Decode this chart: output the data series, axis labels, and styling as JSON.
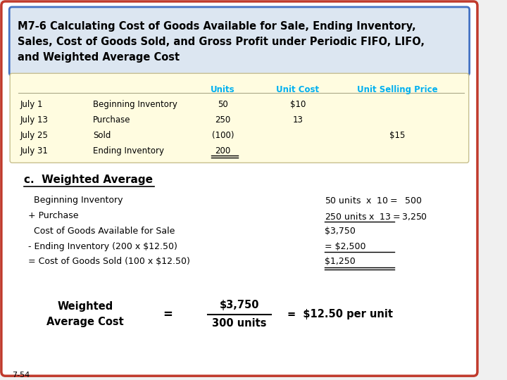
{
  "title_box_text": "M7-6 Calculating Cost of Goods Available for Sale, Ending Inventory,\nSales, Cost of Goods Sold, and Gross Profit under Periodic FIFO, LIFO,\nand Weighted Average Cost",
  "title_box_bg": "#dce6f1",
  "title_box_border": "#4472c4",
  "outer_bg": "#ffffff",
  "outer_border": "#c0392b",
  "table_bg": "#fffce0",
  "table_header_color": "#00b0f0",
  "table_font_color": "#000000",
  "table_headers": [
    "",
    "",
    "Units",
    "Unit Cost",
    "Unit Selling Price"
  ],
  "table_rows": [
    [
      "July 1",
      "Beginning Inventory",
      "50",
      "$10",
      ""
    ],
    [
      "July 13",
      "Purchase",
      "250",
      "13",
      ""
    ],
    [
      "July 25",
      "Sold",
      "(100)",
      "",
      "$15"
    ],
    [
      "July 31",
      "Ending Inventory",
      "200",
      "",
      ""
    ]
  ],
  "section_c_title": "c.  Weighted Average",
  "calc_lines": [
    [
      "  Beginning Inventory",
      "50 units  x  $10 = $  500"
    ],
    [
      "+ Purchase",
      "250 units x  $13 = $3,250"
    ],
    [
      "  Cost of Goods Available for Sale",
      "$3,750"
    ],
    [
      "- Ending Inventory (200 x $12.50)",
      "= $2,500"
    ],
    [
      "= Cost of Goods Sold (100 x $12.50)",
      "$1,250"
    ]
  ],
  "underline_rows": [
    1,
    3,
    4
  ],
  "double_underline_rows": [
    4
  ],
  "formula_left": "Weighted\nAverage Cost",
  "formula_eq1": "=",
  "formula_fraction_num": "$3,750",
  "formula_fraction_den": "300 units",
  "formula_eq2": "=  $12.50 per unit",
  "footer": "7-54",
  "bg_color": "#f0f0f0"
}
